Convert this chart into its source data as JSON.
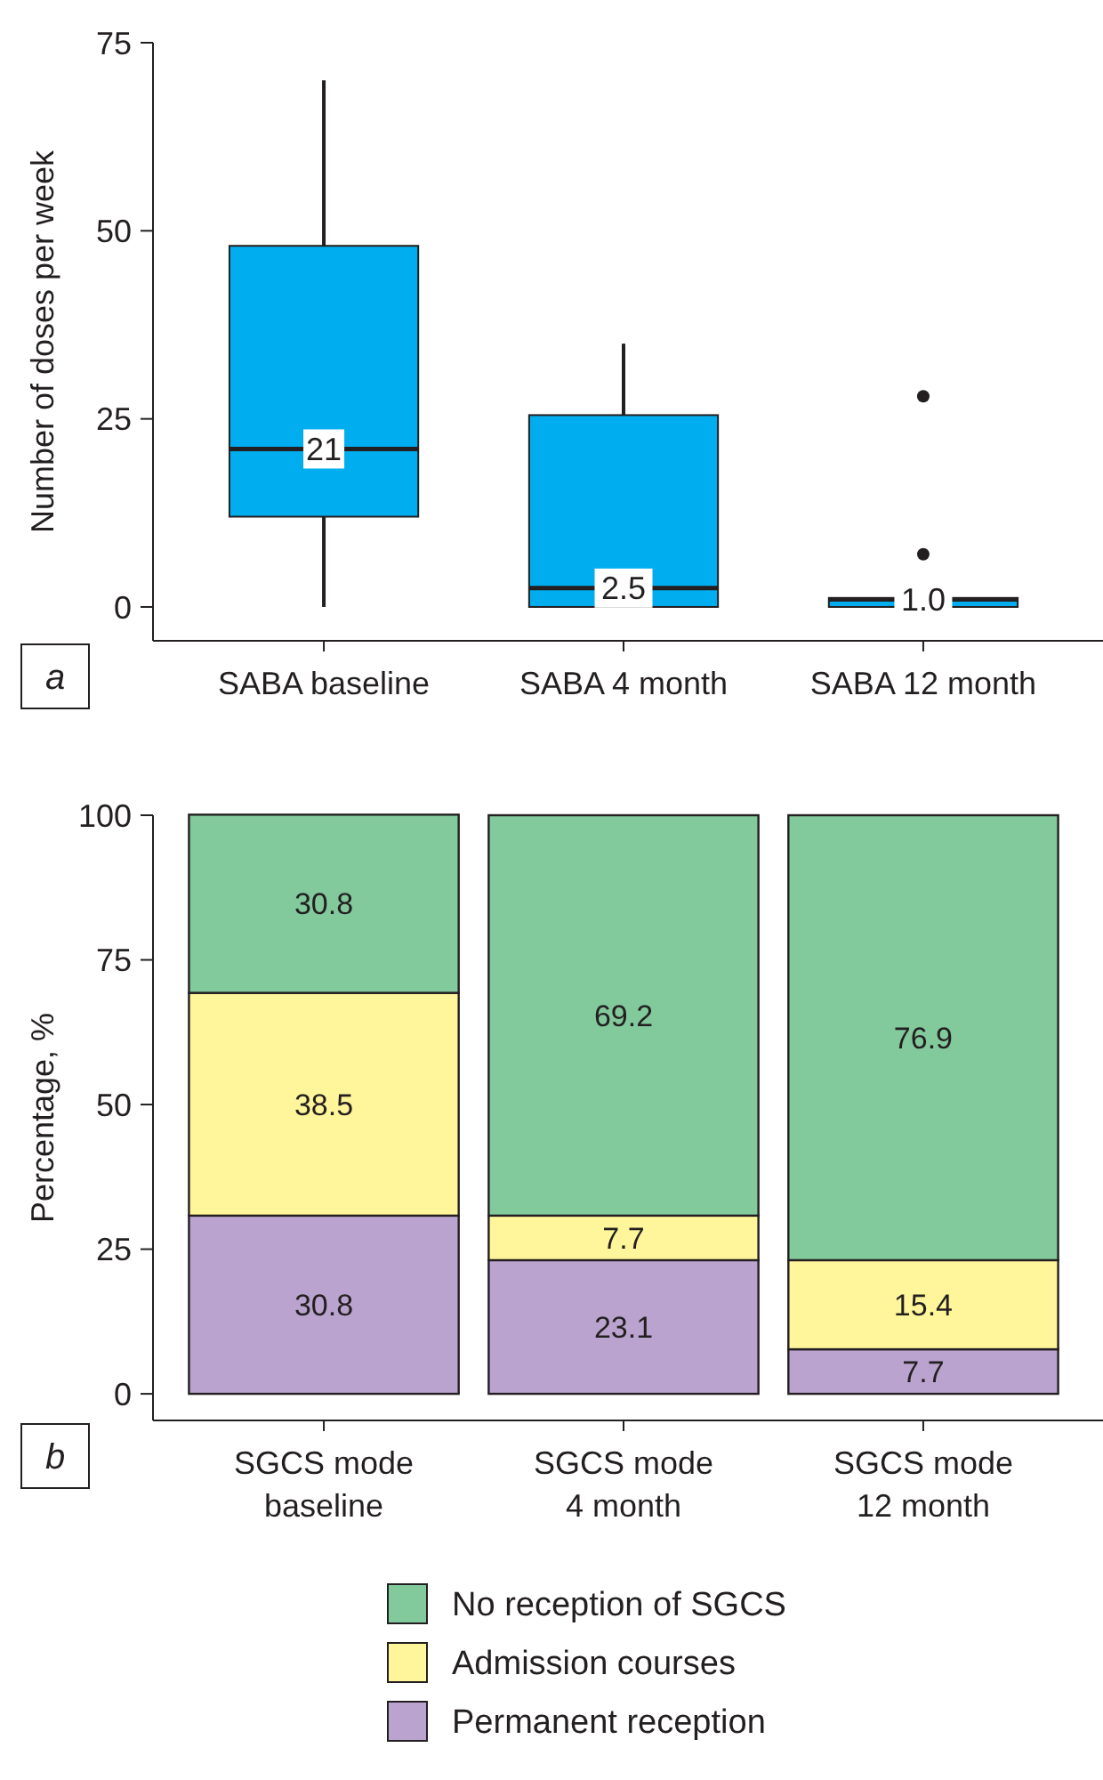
{
  "chart_data": [
    {
      "type": "box",
      "ylabel": "Number of doses per week",
      "categories": [
        "SABA baseline",
        "SABA 4 month",
        "SABA 12 month"
      ],
      "color": "#00aeef",
      "boxes": [
        {
          "low": 0,
          "q1": 12,
          "median": 21,
          "q3": 48,
          "high": 70
        },
        {
          "low": 0,
          "q1": 0,
          "median": 2.5,
          "q3": 25.5,
          "high": 35
        },
        {
          "low": 0,
          "q1": 0,
          "median": 1.0,
          "q3": 1.2,
          "high": 1.2,
          "outliers": [
            7,
            28
          ]
        }
      ],
      "ylim": [
        -4.5,
        75
      ],
      "yticks": [
        0,
        25,
        50,
        75
      ],
      "annotations": [
        "a",
        {
          "text": "21",
          "x": "SABA baseline",
          "y": 21
        },
        {
          "text": "2.5",
          "x": "SABA 4 month",
          "y": 2.5
        },
        {
          "text": "1.0",
          "x": "SABA 12 month",
          "y": 1.0
        }
      ]
    },
    {
      "type": "bar",
      "stacked": true,
      "ylabel": "Percentage, %",
      "categories": [
        "SGCS mode baseline",
        "SGCS mode 4 month",
        "SGCS mode 12 month"
      ],
      "series": [
        {
          "name": "Permanent reception",
          "color": "#bba3cf",
          "values": [
            30.8,
            23.1,
            7.7
          ]
        },
        {
          "name": "Admission courses",
          "color": "#fff59a",
          "values": [
            38.5,
            7.7,
            15.4
          ]
        },
        {
          "name": "No reception of SGCS",
          "color": "#82c99c",
          "values": [
            30.8,
            69.2,
            76.9
          ]
        }
      ],
      "ylim": [
        -4.6,
        100
      ],
      "yticks": [
        0,
        25,
        50,
        75,
        100
      ],
      "data_labels": true,
      "legend": "bottom",
      "annotations": [
        "b"
      ]
    }
  ]
}
